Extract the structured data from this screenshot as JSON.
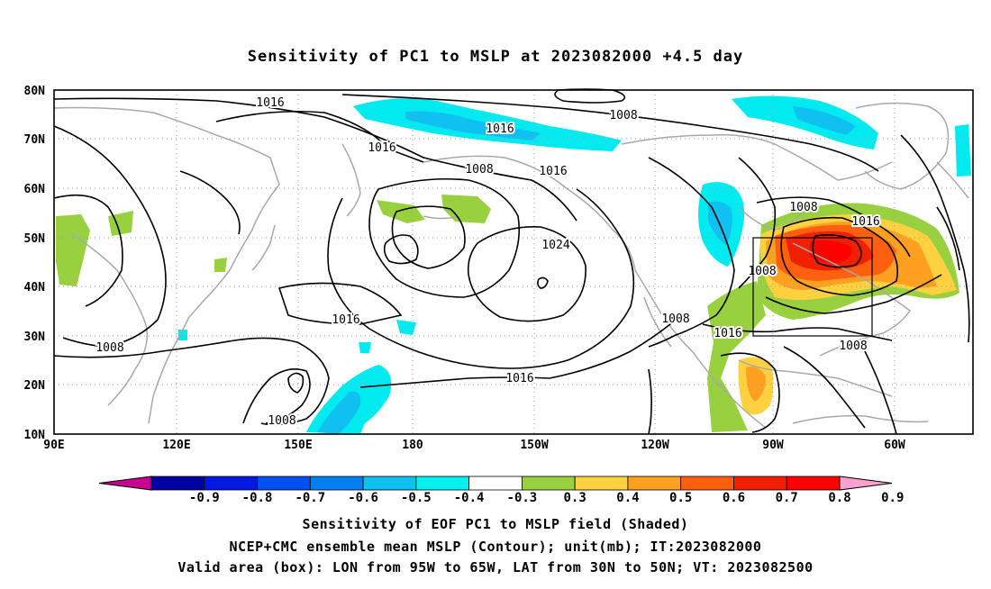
{
  "title": "Sensitivity of PC1 to MSLP at 2023082000 +4.5 day",
  "map": {
    "lat_ticks": [
      "80N",
      "70N",
      "60N",
      "50N",
      "40N",
      "30N",
      "20N",
      "10N"
    ],
    "lon_ticks": [
      "90E",
      "120E",
      "150E",
      "180",
      "150W",
      "120W",
      "90W",
      "60W"
    ],
    "box_label": "",
    "coastline_color": "#a8a8a8",
    "contours": [
      {
        "label": "1016"
      },
      {
        "label": "1008"
      },
      {
        "label": "1016"
      },
      {
        "label": "1016"
      },
      {
        "label": "1008"
      },
      {
        "label": "1016"
      },
      {
        "label": "1024"
      },
      {
        "label": "1016"
      },
      {
        "label": "1008"
      },
      {
        "label": "1008"
      },
      {
        "label": "1016"
      },
      {
        "label": "1008"
      },
      {
        "label": "1016"
      },
      {
        "label": "1008"
      },
      {
        "label": "1008"
      },
      {
        "label": "1016"
      },
      {
        "label": "1008"
      }
    ]
  },
  "colorbar": {
    "labels": [
      "-0.9",
      "-0.8",
      "-0.7",
      "-0.6",
      "-0.5",
      "-0.4",
      "-0.3",
      "0.3",
      "0.4",
      "0.5",
      "0.6",
      "0.7",
      "0.8",
      "0.9"
    ],
    "colors": [
      "#c80090",
      "#0000a0",
      "#0018e0",
      "#0050f0",
      "#0080f0",
      "#10c0f0",
      "#00f0f0",
      "#ffffff",
      "#98d040",
      "#ffd040",
      "#ffa020",
      "#ff6010",
      "#f02000",
      "#ff0000",
      "#ffa0d0"
    ]
  },
  "captions": {
    "line1": "Sensitivity of EOF PC1 to MSLP field (Shaded)",
    "line2": "NCEP+CMC ensemble mean MSLP (Contour); unit(mb); IT:2023082000",
    "line3": "Valid area (box): LON from 95W to 65W, LAT from 30N to 50N; VT: 2023082500"
  }
}
